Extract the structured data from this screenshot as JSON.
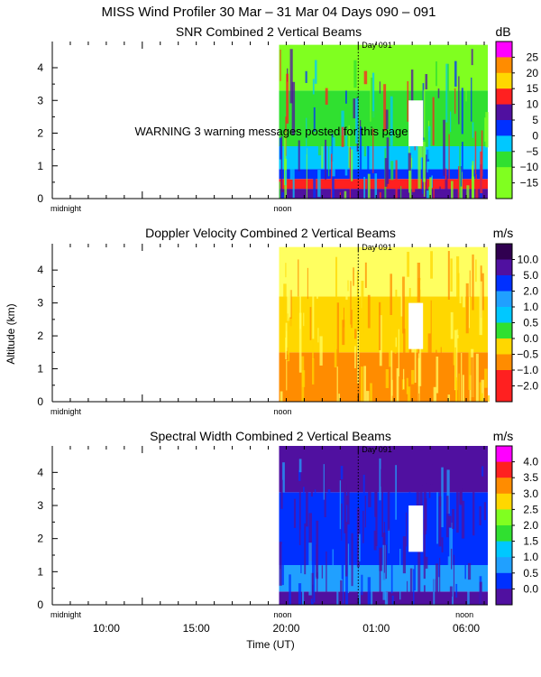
{
  "figure": {
    "title": "MISS Wind Profiler  30 Mar – 31 Mar 04 Days 090 – 091",
    "warning": "WARNING  3 warning messages posted for this page",
    "ylabel": "Altitude (km)",
    "xlabel": "Time (UT)",
    "x_ticks": [
      "10:00",
      "15:00",
      "20:00",
      "01:00",
      "06:00"
    ],
    "marker_labels": [
      "midnight",
      "noon",
      "midnight",
      "noon"
    ],
    "day_marker": "Day 091",
    "colors": {
      "magenta": "#ff00ff",
      "red": "#ff2020",
      "orange": "#ff8c00",
      "yellow": "#ffd700",
      "lightyellow": "#ffff60",
      "green": "#30e030",
      "lime": "#80ff20",
      "cyan": "#00c8ff",
      "skyblue": "#20a0ff",
      "blue": "#0030ff",
      "purple": "#5010a0",
      "darkpurple": "#300050"
    }
  },
  "chart_data": [
    {
      "type": "heatmap",
      "title": "SNR Combined 2 Vertical Beams",
      "unit": "dB",
      "ylim": [
        0,
        4.8
      ],
      "y_ticks": [
        "0",
        "1",
        "2",
        "3",
        "4"
      ],
      "colorbar_ticks": [
        "25",
        "20",
        "15",
        "10",
        "5",
        "0",
        "−5",
        "−10",
        "−15"
      ],
      "colorbar_colors": [
        "magenta",
        "orange",
        "yellow",
        "red",
        "purple",
        "blue",
        "cyan",
        "green",
        "lime",
        "lime"
      ],
      "data_start_hour": 19.6,
      "layers": [
        {
          "from_km": 0.0,
          "to_km": 0.3,
          "color": "purple"
        },
        {
          "from_km": 0.3,
          "to_km": 0.6,
          "color": "red"
        },
        {
          "from_km": 0.6,
          "to_km": 0.9,
          "color": "blue"
        },
        {
          "from_km": 0.9,
          "to_km": 1.6,
          "color": "cyan"
        },
        {
          "from_km": 1.6,
          "to_km": 3.3,
          "color": "green"
        },
        {
          "from_km": 3.3,
          "to_km": 4.7,
          "color": "lime"
        }
      ]
    },
    {
      "type": "heatmap",
      "title": "Doppler Velocity Combined 2 Vertical Beams",
      "unit": "m/s",
      "ylim": [
        0,
        4.8
      ],
      "y_ticks": [
        "0",
        "1",
        "2",
        "3",
        "4"
      ],
      "colorbar_ticks": [
        "10.0",
        "5.0",
        "2.0",
        "1.0",
        "0.5",
        "0.0",
        "−0.5",
        "−1.0",
        "−2.0"
      ],
      "colorbar_colors": [
        "darkpurple",
        "purple",
        "blue",
        "skyblue",
        "cyan",
        "green",
        "yellow",
        "orange",
        "red",
        "red"
      ],
      "data_start_hour": 19.6,
      "layers": [
        {
          "from_km": 0.0,
          "to_km": 1.5,
          "color": "orange"
        },
        {
          "from_km": 1.5,
          "to_km": 3.2,
          "color": "yellow"
        },
        {
          "from_km": 3.2,
          "to_km": 4.7,
          "color": "lightyellow"
        }
      ]
    },
    {
      "type": "heatmap",
      "title": "Spectral Width Combined 2 Vertical Beams",
      "unit": "m/s",
      "ylim": [
        0,
        4.8
      ],
      "y_ticks": [
        "0",
        "1",
        "2",
        "3",
        "4"
      ],
      "colorbar_ticks": [
        "4.0",
        "3.5",
        "3.0",
        "2.5",
        "2.0",
        "1.5",
        "1.0",
        "0.5",
        "0.0"
      ],
      "colorbar_colors": [
        "magenta",
        "red",
        "orange",
        "yellow",
        "lime",
        "green",
        "cyan",
        "skyblue",
        "blue",
        "purple"
      ],
      "data_start_hour": 19.6,
      "layers": [
        {
          "from_km": 0.0,
          "to_km": 0.4,
          "color": "purple"
        },
        {
          "from_km": 0.4,
          "to_km": 1.2,
          "color": "skyblue"
        },
        {
          "from_km": 1.2,
          "to_km": 3.4,
          "color": "blue"
        },
        {
          "from_km": 3.4,
          "to_km": 4.8,
          "color": "purple"
        }
      ]
    }
  ]
}
